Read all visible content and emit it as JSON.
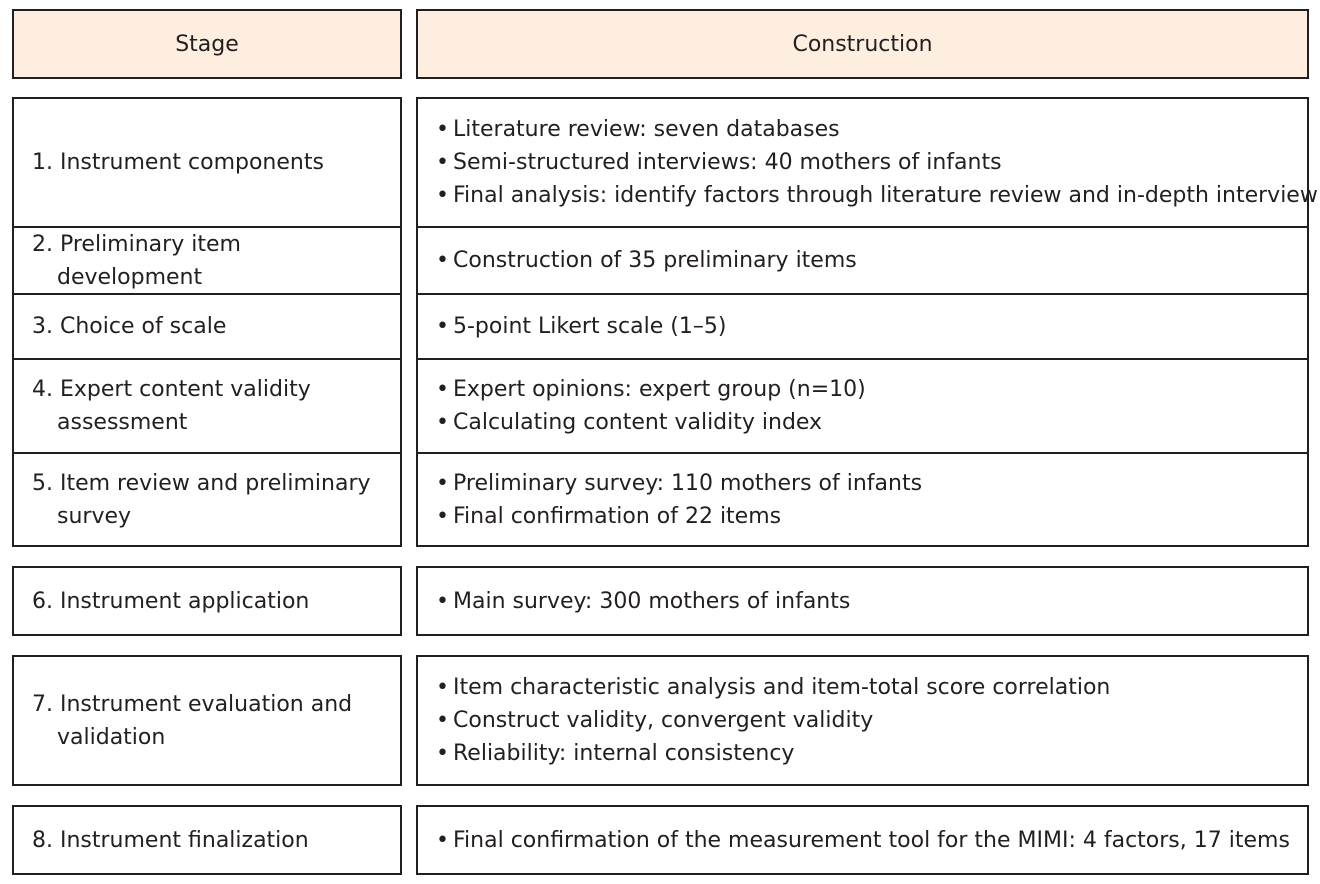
{
  "header": {
    "stage": "Stage",
    "construction": "Construction"
  },
  "bullet": "•",
  "rows": [
    {
      "stage": "1. Instrument components",
      "items": [
        "Literature review: seven databases",
        "Semi-structured interviews: 40 mothers of infants",
        "Final analysis: identify factors through literature review and in-depth interview"
      ]
    },
    {
      "stage": "2. Preliminary item development",
      "items": [
        "Construction of 35 preliminary items"
      ]
    },
    {
      "stage": "3. Choice of scale",
      "items": [
        "5-point Likert scale (1–5)"
      ]
    },
    {
      "stage": "4. Expert content validity assessment",
      "items": [
        "Expert opinions: expert group (n=10)",
        "Calculating content validity index"
      ]
    },
    {
      "stage": "5. Item review and preliminary survey",
      "items": [
        "Preliminary survey: 110 mothers of infants",
        "Final confirmation of 22 items"
      ]
    },
    {
      "stage": "6. Instrument application",
      "items": [
        "Main survey: 300 mothers of infants"
      ]
    },
    {
      "stage": "7. Instrument evaluation and validation",
      "items": [
        "Item characteristic analysis and item-total score correlation",
        "Construct validity, convergent validity",
        "Reliability: internal consistency"
      ]
    },
    {
      "stage": "8. Instrument finalization",
      "items": [
        "Final confirmation of the measurement tool for the MIMI: 4 factors, 17 items"
      ]
    }
  ]
}
